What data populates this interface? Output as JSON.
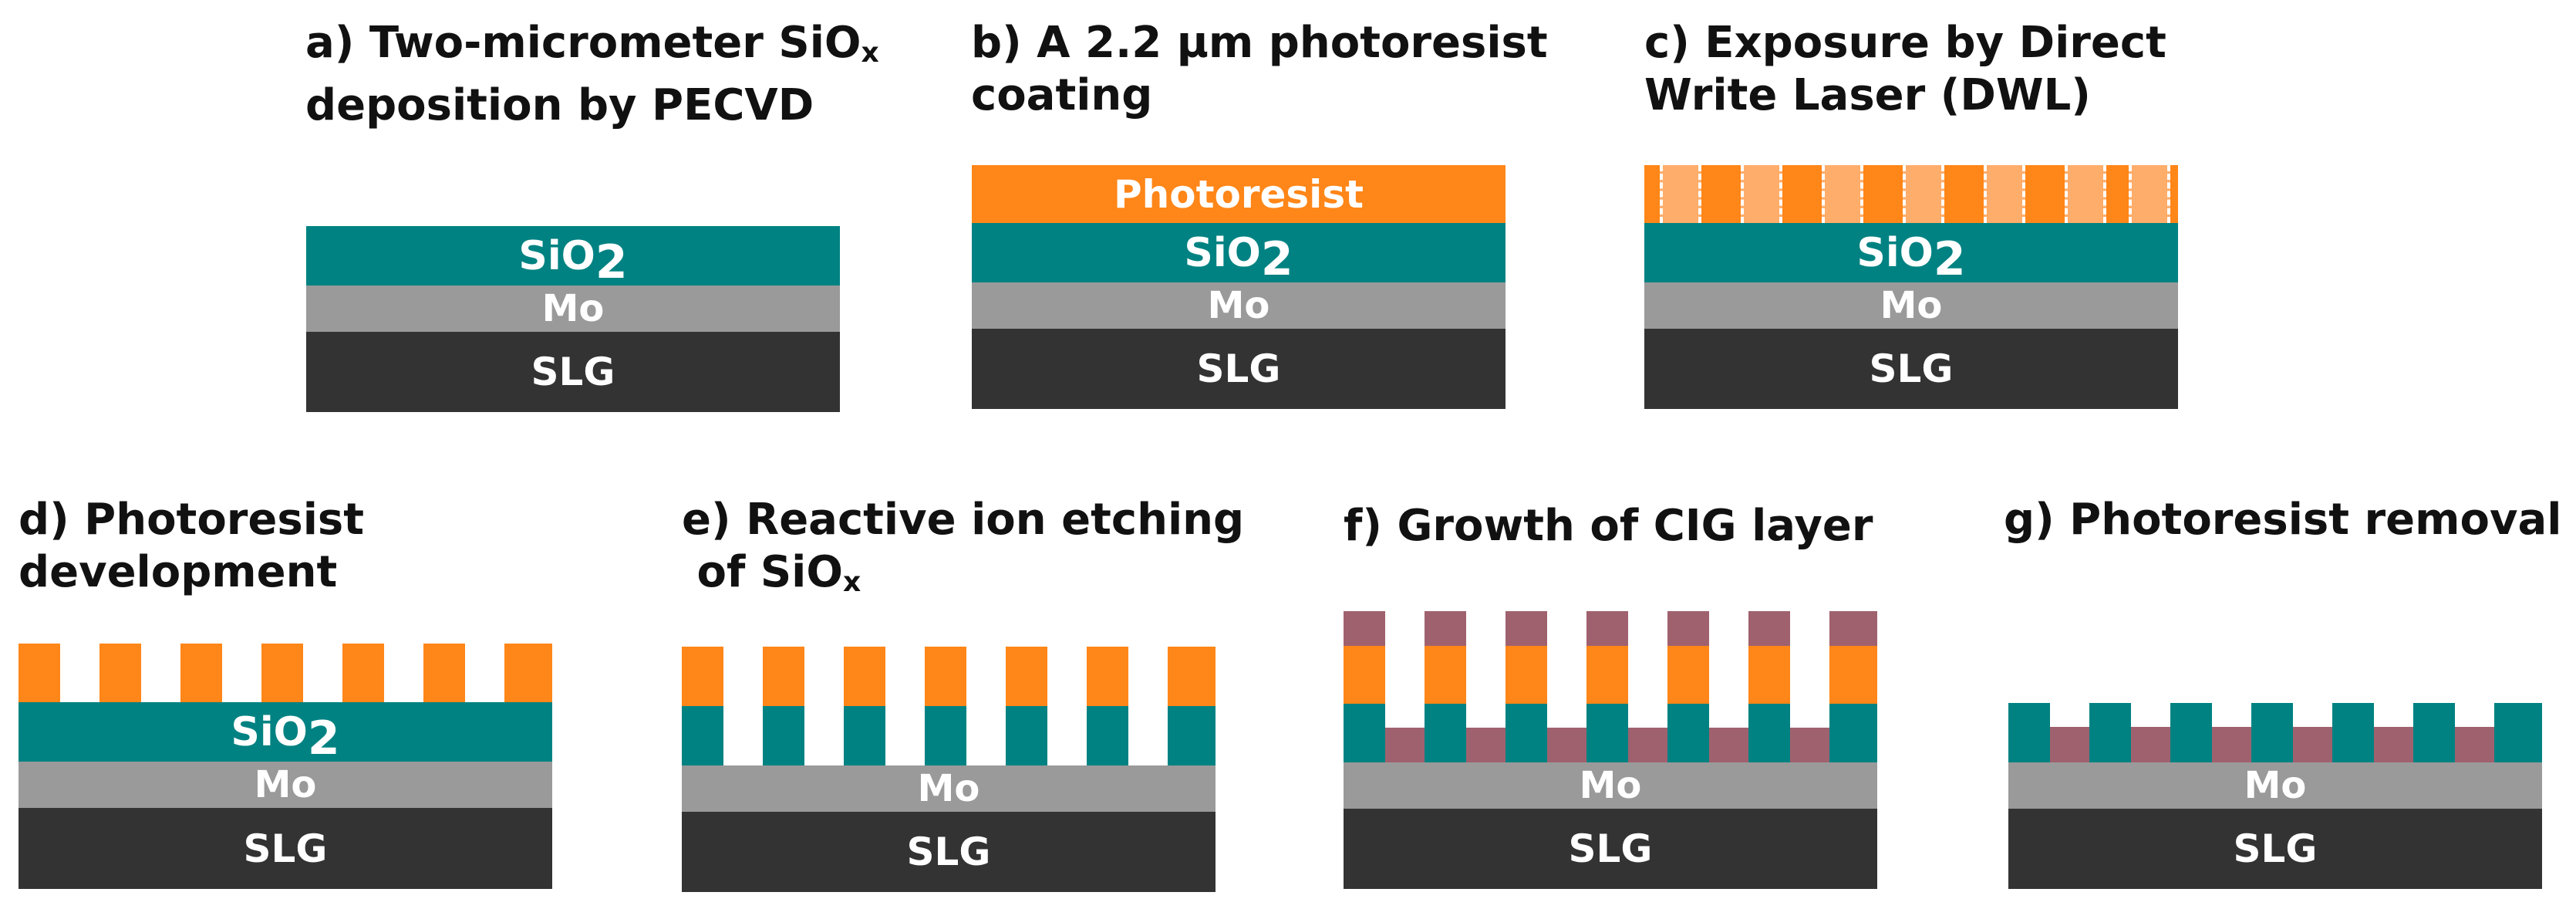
{
  "panels": {
    "a": {
      "title_line1": "a) Two-micrometer SiO",
      "title_sub1": "x",
      "title_line2": "deposition by PECVD"
    },
    "b": {
      "title_line1": "b) A 2.2 µm photoresist",
      "title_line2": "coating"
    },
    "c": {
      "title_line1": "c) Exposure by Direct",
      "title_line2": "Write Laser (DWL)"
    },
    "d": {
      "title_line1": "d) Photoresist",
      "title_line2": "development"
    },
    "e": {
      "title_line1": "e) Reactive ion etching",
      "title_line2": " of SiO",
      "title_sub2": "x"
    },
    "f": {
      "title_line1": "f) Growth of CIG layer"
    },
    "g": {
      "title_line1": "g) Photoresist removal"
    }
  },
  "labels": {
    "slg": "SLG",
    "mo": "Mo",
    "sio_base": "SiO",
    "sio_sub": "2",
    "photoresist": "Photoresist"
  },
  "colors": {
    "slg": "#333333",
    "mo": "#9a9a9a",
    "sio2": "#008282",
    "photoresist": "#ff8618",
    "exposed_photoresist": "#ffad6a",
    "cig": "#a0616e"
  }
}
